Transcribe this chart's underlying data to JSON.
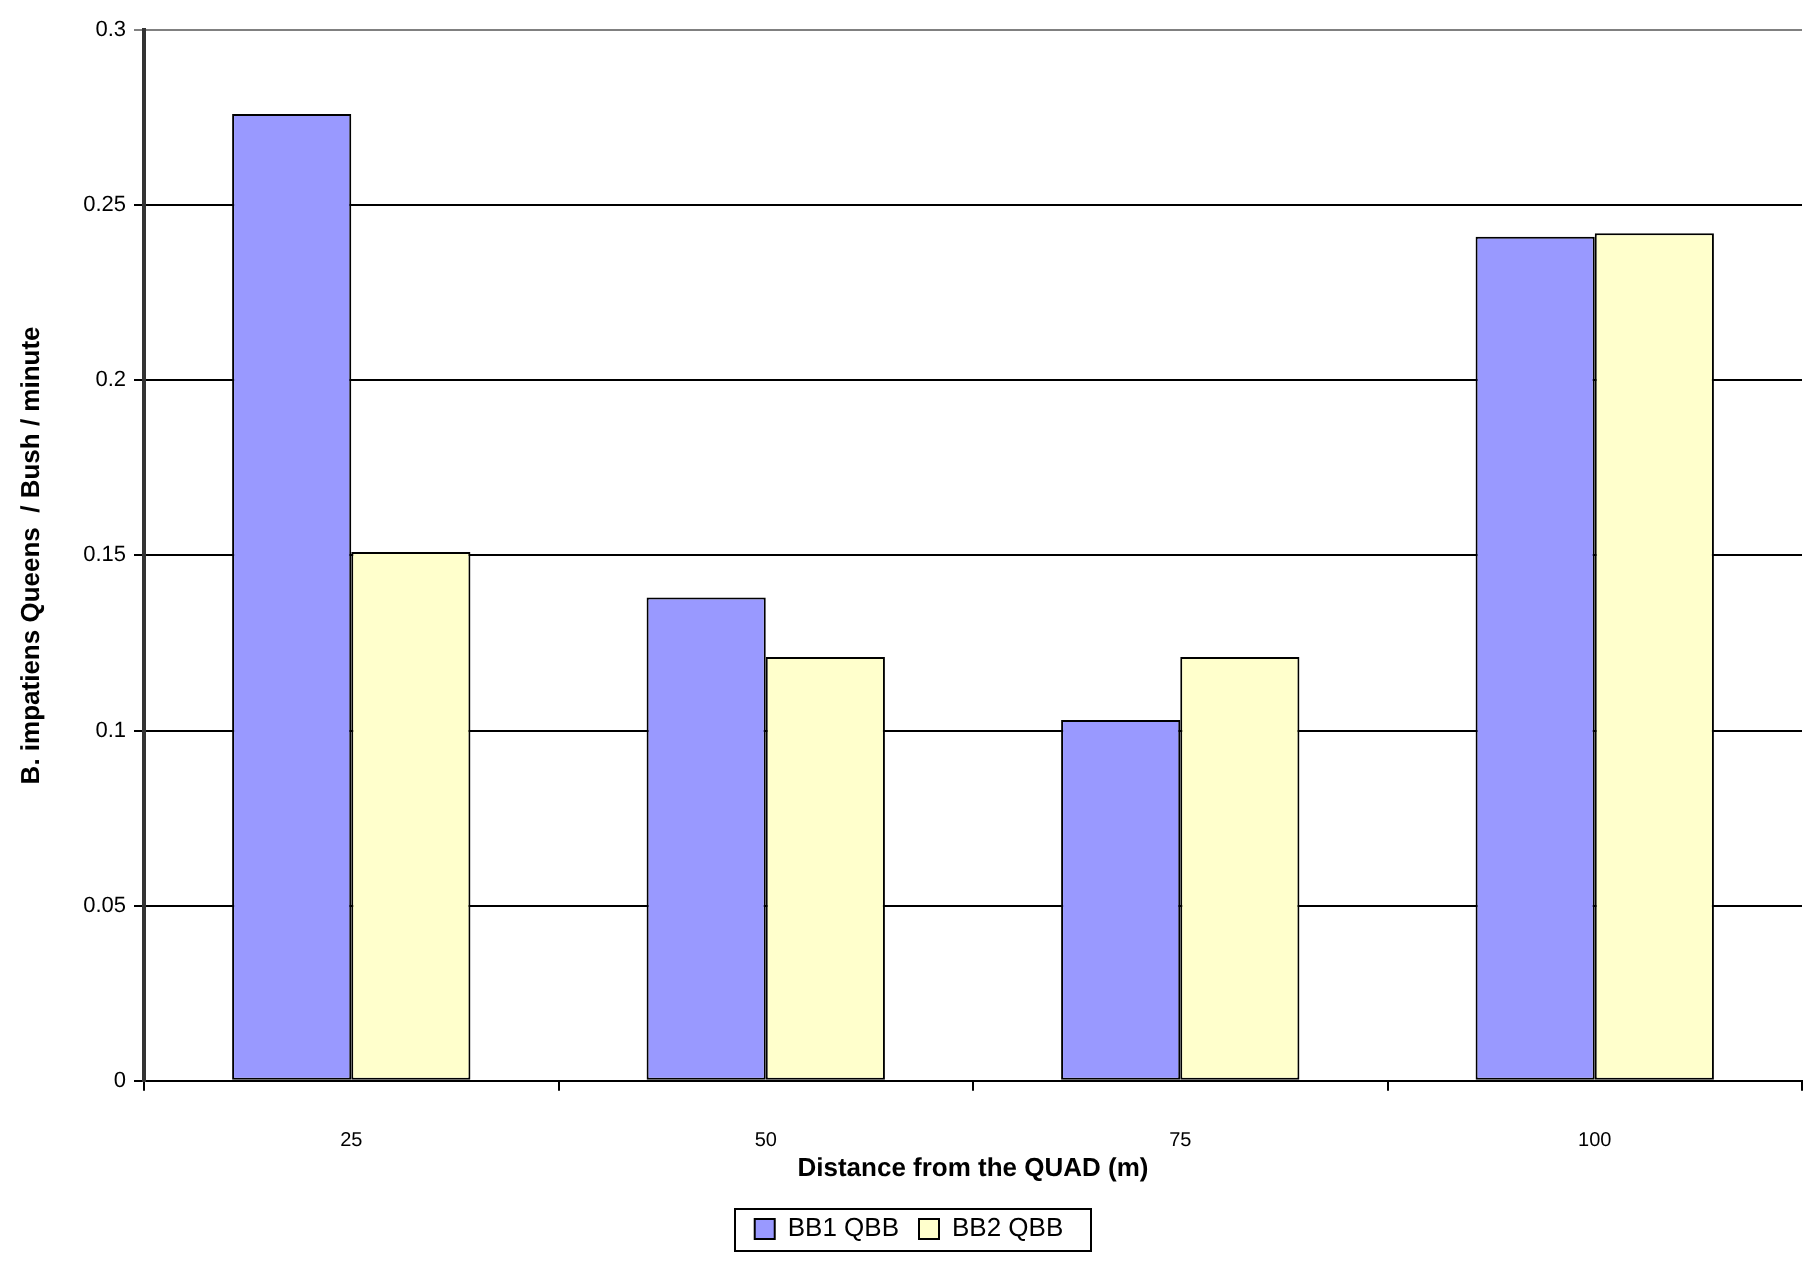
{
  "chart_data": {
    "type": "bar",
    "xlabel": "Distance from the QUAD (m)",
    "ylabel": "B. impatiens Queens  / Bush / minute",
    "categories": [
      "25",
      "50",
      "75",
      "100"
    ],
    "series": [
      {
        "name": "BB1 QBB",
        "color": "#9999ff",
        "values": [
          0.276,
          0.138,
          0.103,
          0.241
        ]
      },
      {
        "name": "BB2 QBB",
        "color": "#ffffcc",
        "values": [
          0.151,
          0.121,
          0.121,
          0.242
        ]
      }
    ],
    "ylim": [
      0,
      0.3
    ],
    "yticks": [
      0,
      0.05,
      0.1,
      0.15,
      0.2,
      0.25,
      0.3
    ],
    "grid": "y",
    "legend": "bottom"
  }
}
